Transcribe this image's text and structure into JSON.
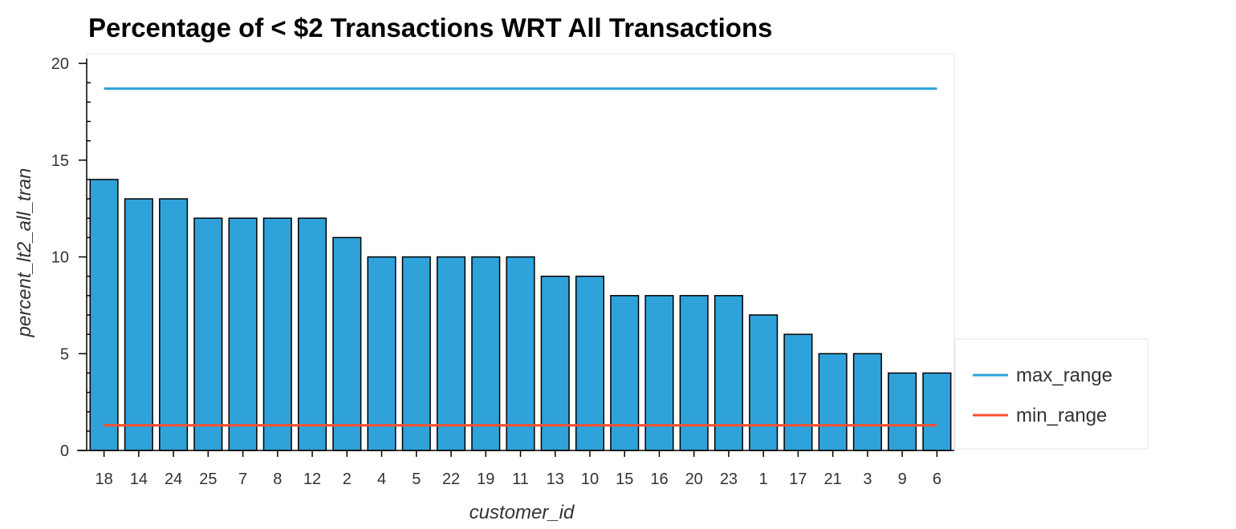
{
  "colors": {
    "bar_fill": "#30a2da",
    "bar_stroke": "#000000",
    "max_range": "#30a2da",
    "min_range": "#fc4f30",
    "frame": "#e5e5e5",
    "axis": "#000000"
  },
  "chart_data": {
    "type": "bar",
    "title": "Percentage of < $2 Transactions WRT All Transactions",
    "xlabel": "customer_id",
    "ylabel": "percent_lt2_all_tran",
    "ylim": [
      0,
      20.5
    ],
    "yticks": [
      0,
      5,
      10,
      15,
      20
    ],
    "categories": [
      "18",
      "14",
      "24",
      "25",
      "7",
      "8",
      "12",
      "2",
      "4",
      "5",
      "22",
      "19",
      "11",
      "13",
      "10",
      "15",
      "16",
      "20",
      "23",
      "1",
      "17",
      "21",
      "3",
      "9",
      "6"
    ],
    "values": [
      14,
      13,
      13,
      12,
      12,
      12,
      12,
      11,
      10,
      10,
      10,
      10,
      10,
      9,
      9,
      8,
      8,
      8,
      8,
      7,
      6,
      5,
      5,
      4,
      4
    ],
    "lines": [
      {
        "name": "max_range",
        "value": 18.7
      },
      {
        "name": "min_range",
        "value": 1.3
      }
    ],
    "legend_position": "right-bottom",
    "grid": false
  }
}
